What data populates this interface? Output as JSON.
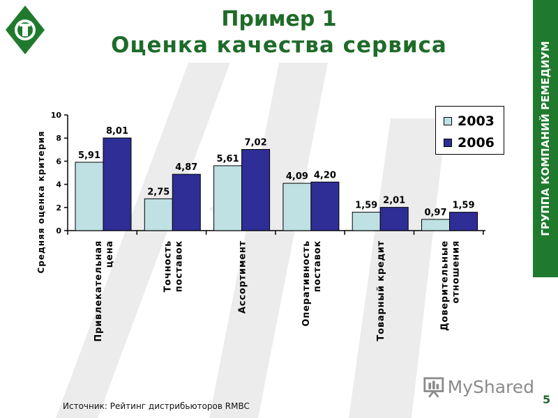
{
  "title": {
    "line1": "Пример 1",
    "line2": "Оценка качества сервиса"
  },
  "side_banner": "ГРУППА КОМПАНИЙ РЕМЕДИУМ",
  "source": "Источник: Рейтинг дистрибьюторов RMBC",
  "page_number": "5",
  "watermark_brand": "MyShared",
  "colors": {
    "brand_green": "#1f7a2e",
    "series_2003": "#bfe1e4",
    "series_2006": "#2e2e96"
  },
  "chart_data": {
    "type": "bar",
    "title": "",
    "ylabel": "Средняя оценка критерия",
    "xlabel": "",
    "ylim": [
      0,
      10
    ],
    "yticks": [
      0,
      2,
      4,
      6,
      8,
      10
    ],
    "categories": [
      [
        "Привлекательная",
        "цена"
      ],
      [
        "Точность",
        "поставок"
      ],
      [
        "Ассортимент"
      ],
      [
        "Оперативность",
        "поставок"
      ],
      [
        "Товарный кредит"
      ],
      [
        "Доверительные",
        "отношения"
      ]
    ],
    "series": [
      {
        "name": "2003",
        "values": [
          5.91,
          2.75,
          5.61,
          4.09,
          1.59,
          0.97
        ],
        "labels": [
          "5,91",
          "2,75",
          "5,61",
          "4,09",
          "1,59",
          "0,97"
        ]
      },
      {
        "name": "2006",
        "values": [
          8.01,
          4.87,
          7.02,
          4.2,
          2.01,
          1.59
        ],
        "labels": [
          "8,01",
          "4,87",
          "7,02",
          "4,20",
          "2,01",
          "1,59"
        ]
      }
    ],
    "legend_position": "top-right",
    "grid": false
  }
}
